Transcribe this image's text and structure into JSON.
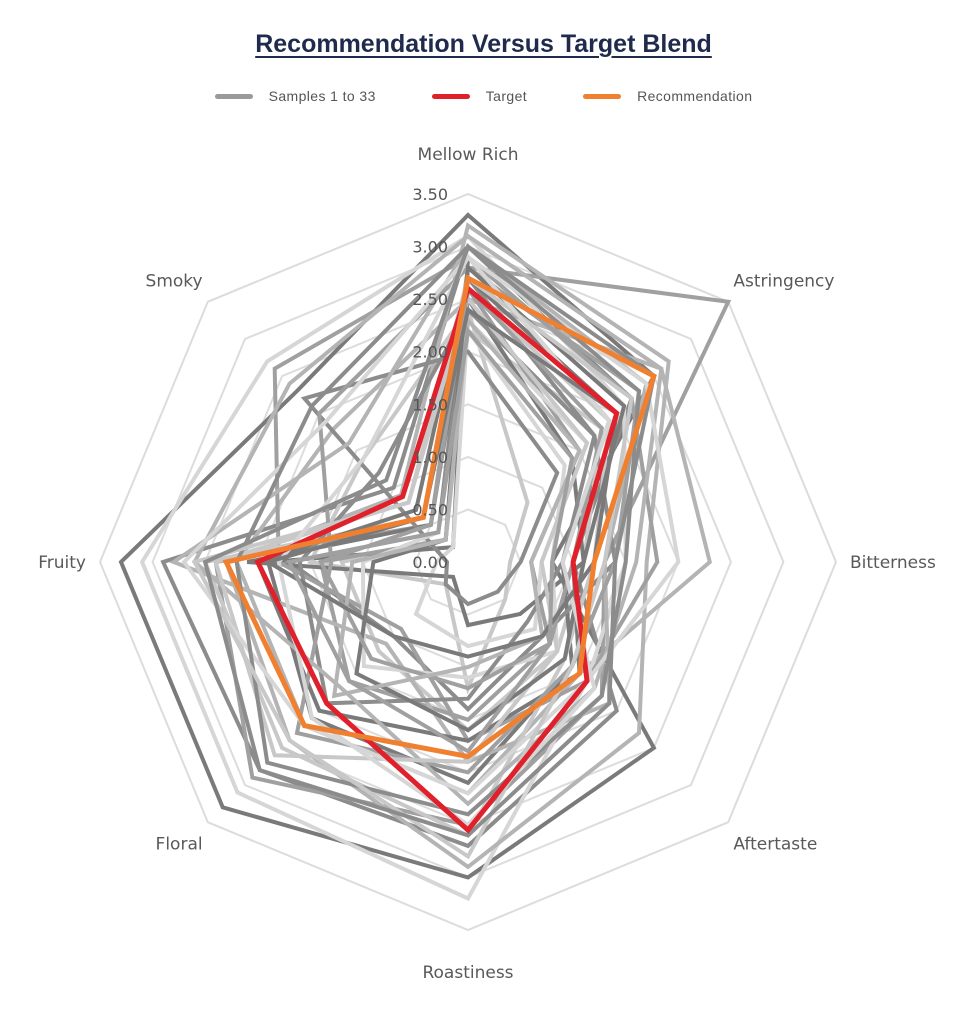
{
  "chart_data": {
    "type": "radar",
    "title": "Recommendation Versus Target Blend",
    "axes": [
      "Mellow Rich",
      "Astringency",
      "Bitterness",
      "Aftertaste",
      "Roastiness",
      "Floral",
      "Fruity",
      "Smoky"
    ],
    "rlim": [
      0,
      3.5
    ],
    "ticks": [
      "0.00",
      "0.50",
      "1.00",
      "1.50",
      "2.00",
      "2.50",
      "3.00",
      "3.50"
    ],
    "tick_values": [
      0,
      0.5,
      1,
      1.5,
      2,
      2.5,
      3,
      3.5
    ],
    "grid": true,
    "legend_position": "top",
    "legend": [
      {
        "label": "Samples 1 to 33",
        "color": "#9a9a9a"
      },
      {
        "label": "Target",
        "color": "#e0202a"
      },
      {
        "label": "Recommendation",
        "color": "#f08030"
      }
    ],
    "sample_colors": [
      "#7a7a7a",
      "#8c8c8c",
      "#a0a0a0",
      "#b4b4b4",
      "#c8c8c8",
      "#d6d6d6"
    ],
    "series": [
      {
        "name": "Target",
        "color": "#e0202a",
        "values": [
          2.6,
          2.0,
          1.0,
          1.6,
          2.55,
          1.9,
          2.0,
          0.88
        ]
      },
      {
        "name": "Recommendation",
        "color": "#f08030",
        "values": [
          2.7,
          2.5,
          1.2,
          1.5,
          1.85,
          2.2,
          2.3,
          0.6
        ]
      }
    ],
    "samples": [
      [
        3.3,
        2.5,
        0.8,
        2.5,
        3.0,
        3.3,
        3.3,
        2.3
      ],
      [
        3.0,
        2.2,
        1.0,
        2.0,
        2.7,
        2.8,
        2.9,
        1.0
      ],
      [
        2.8,
        3.5,
        1.3,
        1.8,
        2.5,
        2.9,
        2.4,
        0.5
      ],
      [
        2.5,
        2.6,
        2.3,
        1.5,
        2.2,
        2.2,
        2.2,
        1.8
      ],
      [
        2.2,
        1.8,
        1.1,
        1.2,
        1.6,
        1.2,
        1.2,
        0.3
      ],
      [
        3.1,
        2.1,
        1.5,
        1.6,
        3.2,
        3.1,
        3.1,
        2.7
      ],
      [
        2.9,
        1.9,
        0.9,
        1.4,
        2.1,
        2.1,
        1.9,
        0.2
      ],
      [
        2.7,
        1.7,
        1.4,
        1.0,
        1.4,
        1.0,
        1.7,
        0.4
      ],
      [
        2.6,
        1.5,
        0.6,
        1.1,
        1.5,
        1.6,
        1.4,
        0.3
      ],
      [
        3.2,
        2.7,
        1.7,
        2.3,
        2.9,
        2.4,
        2.3,
        0.9
      ],
      [
        2.4,
        0.8,
        0.4,
        0.5,
        1.2,
        0.3,
        1.5,
        1.4
      ],
      [
        2.3,
        1.6,
        0.7,
        0.9,
        0.8,
        0.7,
        0.3,
        0.2
      ],
      [
        2.5,
        1.4,
        1.1,
        0.7,
        0.6,
        0.2,
        2.1,
        0.5
      ],
      [
        2.0,
        1.2,
        0.5,
        0.4,
        0.4,
        0.3,
        0.2,
        2.2
      ],
      [
        2.9,
        2.2,
        1.8,
        1.6,
        1.7,
        0.9,
        1.8,
        2.6
      ],
      [
        3.0,
        2.4,
        1.3,
        1.9,
        1.9,
        1.1,
        2.8,
        1.6
      ],
      [
        2.6,
        1.9,
        1.2,
        1.3,
        2.6,
        2.5,
        2.5,
        0.6
      ],
      [
        2.2,
        1.3,
        0.8,
        1.2,
        1.1,
        1.4,
        1.0,
        0.4
      ],
      [
        2.7,
        2.0,
        1.0,
        1.5,
        1.7,
        2.0,
        2.0,
        0.7
      ],
      [
        2.4,
        1.7,
        0.9,
        0.8,
        1.3,
        1.9,
        1.6,
        1.2
      ],
      [
        2.8,
        2.3,
        1.4,
        1.4,
        2.0,
        2.3,
        1.3,
        2.0
      ],
      [
        3.1,
        2.6,
        1.6,
        1.7,
        2.3,
        1.7,
        2.6,
        2.4
      ],
      [
        2.5,
        1.6,
        0.7,
        1.2,
        1.9,
        2.6,
        2.4,
        0.8
      ],
      [
        2.9,
        2.4,
        2.0,
        1.6,
        2.2,
        2.2,
        2.7,
        1.9
      ],
      [
        2.8,
        2.1,
        1.1,
        1.3,
        1.6,
        1.5,
        0.9,
        0.3
      ],
      [
        3.0,
        2.3,
        1.5,
        1.8,
        2.4,
        2.7,
        2.2,
        2.1
      ],
      [
        2.6,
        1.8,
        1.0,
        1.1,
        1.2,
        1.3,
        1.4,
        0.5
      ],
      [
        2.3,
        1.5,
        0.6,
        1.0,
        1.0,
        1.8,
        1.1,
        0.3
      ],
      [
        2.7,
        2.2,
        1.3,
        1.4,
        2.8,
        2.4,
        2.6,
        0.8
      ],
      [
        2.9,
        1.9,
        0.9,
        1.7,
        2.5,
        2.1,
        1.8,
        1.4
      ],
      [
        2.4,
        2.0,
        1.2,
        1.0,
        0.9,
        1.0,
        1.9,
        0.6
      ],
      [
        3.0,
        2.5,
        1.4,
        1.9,
        2.6,
        2.8,
        2.5,
        1.1
      ],
      [
        2.2,
        1.4,
        0.8,
        1.1,
        1.8,
        1.6,
        1.7,
        0.4
      ]
    ]
  }
}
